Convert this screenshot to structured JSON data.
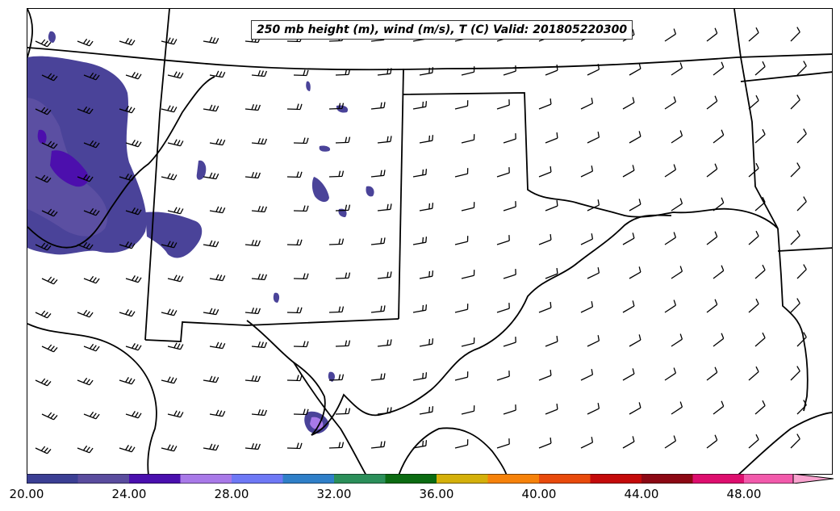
{
  "title": "250 mb height (m), wind (m/s), T (C) Valid: 201805220300",
  "colorbar": {
    "colors": [
      "#3b3f94",
      "#5a4c9e",
      "#4a10ae",
      "#a879e8",
      "#6e78f5",
      "#2f7fc8",
      "#2b8f5a",
      "#0b6b12",
      "#d4b00a",
      "#f6820a",
      "#e84a0c",
      "#c40a0a",
      "#8c0814",
      "#dd0e6e",
      "#f25aab",
      "#f9a3cf"
    ],
    "tick_labels": [
      "20.00",
      "24.00",
      "28.00",
      "32.00",
      "36.00",
      "40.00",
      "44.00",
      "48.00"
    ]
  },
  "shading_colors": {
    "level_20": "#4a4399",
    "level_22": "#5b4fa2",
    "level_24": "#4c0fad",
    "level_26": "#a879e8"
  },
  "line_color": "#000000"
}
